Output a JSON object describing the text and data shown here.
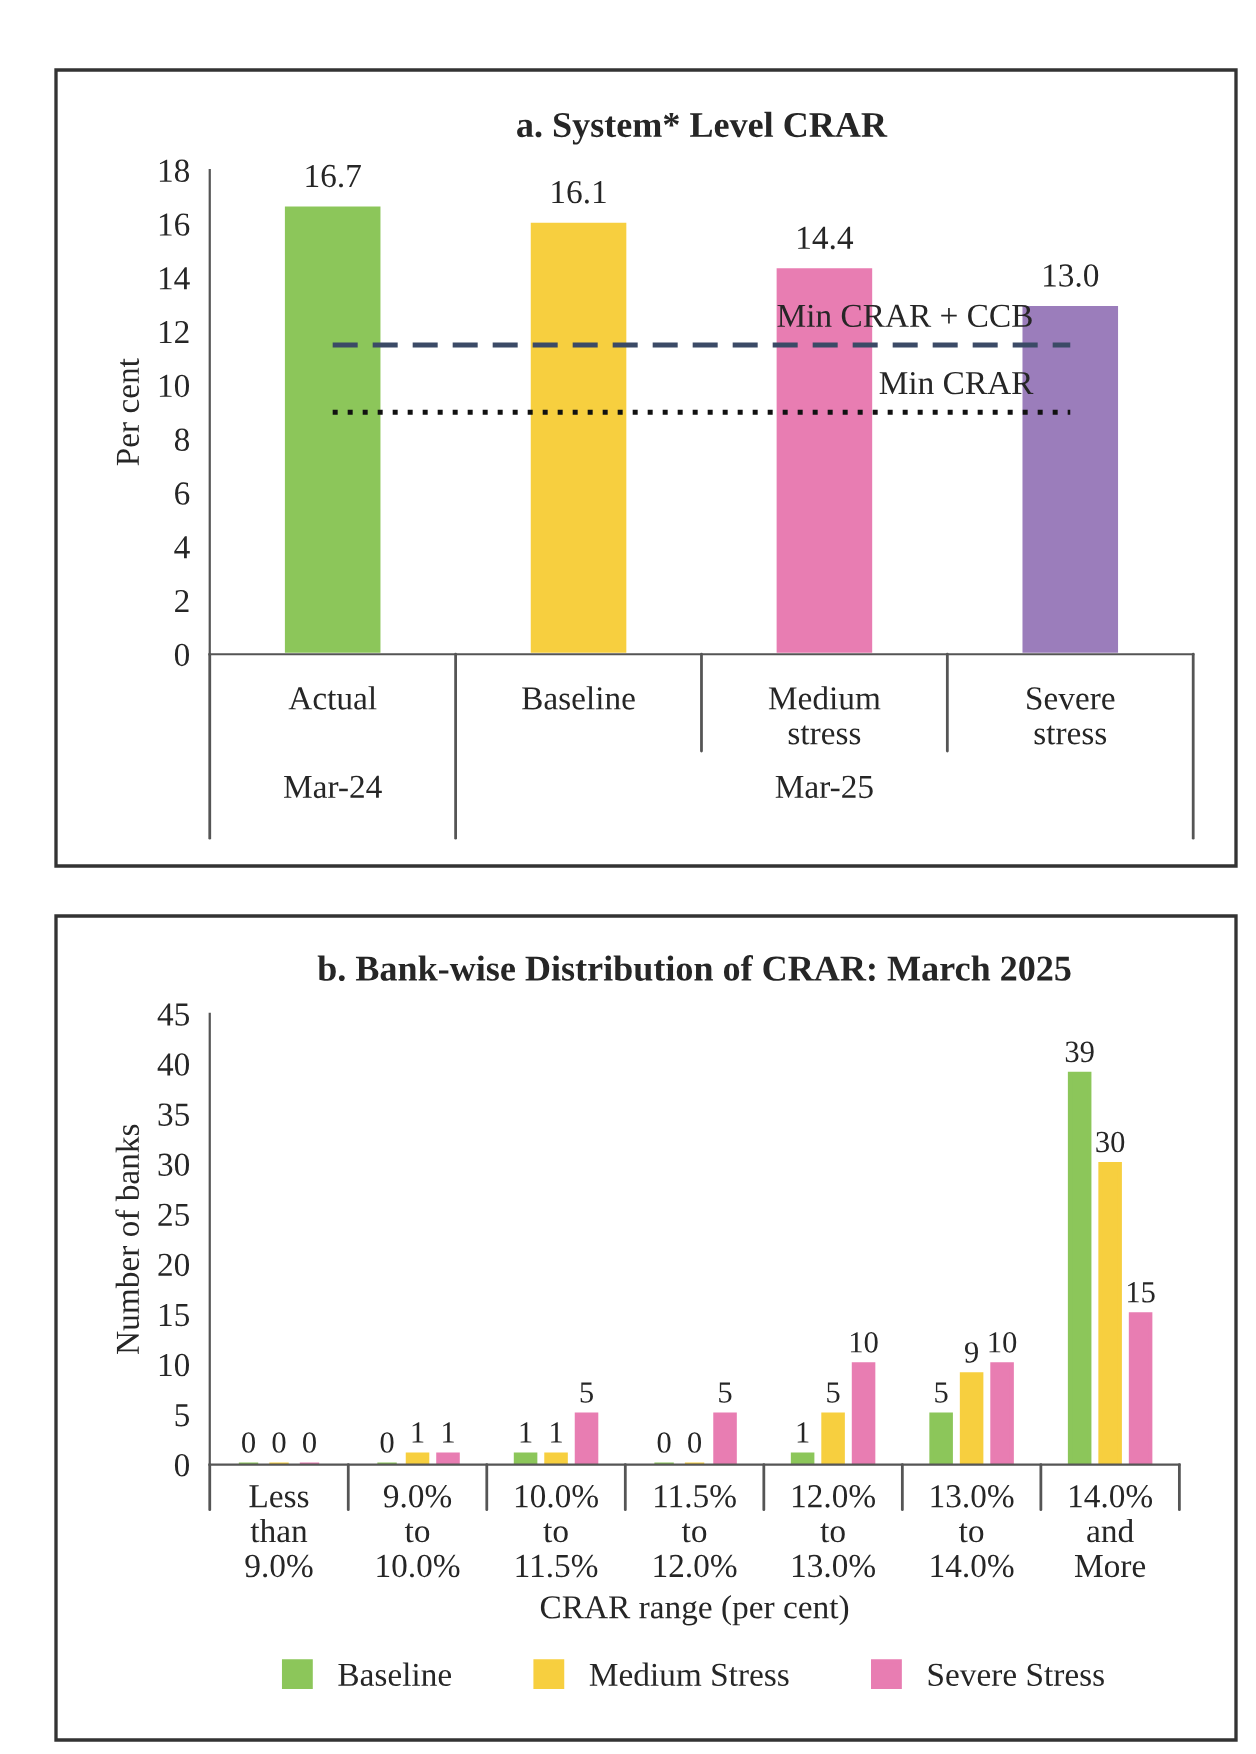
{
  "chart_data": [
    {
      "type": "bar",
      "title": "a. System* Level CRAR",
      "ylabel": "Per cent",
      "categories": [
        "Actual",
        "Baseline",
        "Medium\nstress",
        "Severe\nstress"
      ],
      "values": [
        16.7,
        16.1,
        14.4,
        13.0
      ],
      "value_labels": [
        "16.7",
        "16.1",
        "14.4",
        "13.0"
      ],
      "colors": [
        "#8cc65a",
        "#f7cf3f",
        "#e87db2",
        "#9b7dbb"
      ],
      "ylim": [
        0,
        18
      ],
      "yticks": [
        0,
        2,
        4,
        6,
        8,
        10,
        12,
        14,
        16,
        18
      ],
      "grid": false,
      "ref_lines": [
        {
          "axis": "y",
          "value": 11.5,
          "label": "Min CRAR + CCB",
          "color": "#3b4a66",
          "line_style": "dashed"
        },
        {
          "axis": "y",
          "value": 9,
          "label": "Min CRAR",
          "color": "#111111",
          "line_style": "dotted"
        }
      ],
      "annotations": [
        "Mar-24",
        "Mar-25"
      ]
    },
    {
      "type": "bar",
      "title": "b. Bank-wise Distribution of CRAR: March 2025",
      "xlabel": "CRAR range (per cent)",
      "ylabel": "Number of banks",
      "categories": [
        "Less\nthan\n9.0%",
        "9.0%\nto\n10.0%",
        "10.0%\nto\n11.5%",
        "11.5%\nto\n12.0%",
        "12.0%\nto\n13.0%",
        "13.0%\nto\n14.0%",
        "14.0%\nand\nMore"
      ],
      "series": [
        {
          "name": "Baseline",
          "color": "#8cc65a",
          "values": [
            0,
            0,
            1,
            0,
            1,
            5,
            39
          ]
        },
        {
          "name": "Medium Stress",
          "color": "#f7cf3f",
          "values": [
            0,
            1,
            1,
            0,
            5,
            9,
            30
          ]
        },
        {
          "name": "Severe Stress",
          "color": "#e87db2",
          "values": [
            0,
            1,
            5,
            5,
            10,
            10,
            15
          ]
        }
      ],
      "data_labels": true,
      "ylim": [
        0,
        45
      ],
      "yticks": [
        0,
        5,
        10,
        15,
        20,
        25,
        30,
        35,
        40,
        45
      ],
      "grid": false,
      "legend": "bottom"
    }
  ]
}
